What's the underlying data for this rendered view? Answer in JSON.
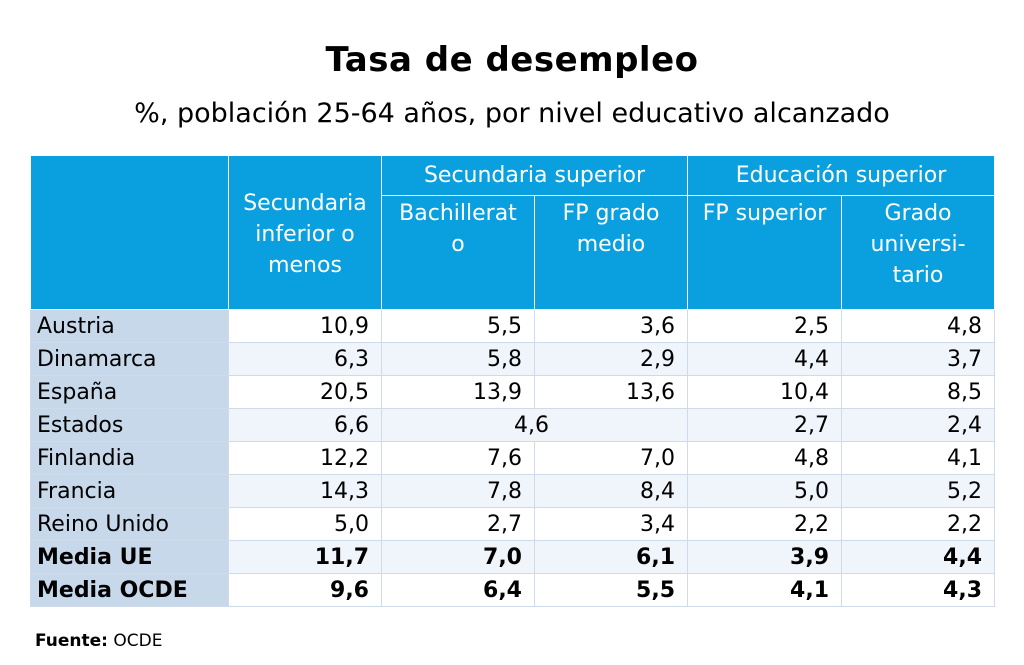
{
  "chart_data": {
    "type": "table",
    "title": "Tasa de desempleo",
    "subtitle": "%, población 25-64 años, por nivel educativo alcanzado",
    "header_groups": [
      {
        "label": [
          "Secundaria",
          "inferior o",
          "menos"
        ]
      },
      {
        "label": "Secundaria superior",
        "sub": [
          [
            "Bachillerat",
            "o"
          ],
          [
            "FP grado",
            "medio"
          ]
        ]
      },
      {
        "label": "Educación superior",
        "sub": [
          [
            "FP superior"
          ],
          [
            "Grado",
            "universi-",
            "tario"
          ]
        ]
      }
    ],
    "columns": [
      "Secundaria inferior o menos",
      "Bachillerato",
      "FP grado medio",
      "FP superior",
      "Grado universitario"
    ],
    "rows": [
      {
        "country": "Austria",
        "values": [
          "10,9",
          "5,5",
          "3,6",
          "2,5",
          "4,8"
        ]
      },
      {
        "country": "Dinamarca",
        "values": [
          "6,3",
          "5,8",
          "2,9",
          "4,4",
          "3,7"
        ]
      },
      {
        "country": "España",
        "values": [
          "20,5",
          "13,9",
          "13,6",
          "10,4",
          "8,5"
        ]
      },
      {
        "country": "Estados",
        "values": [
          "6,6",
          "4,6",
          "2,7",
          "2,4"
        ],
        "merged_secundaria_superior": true
      },
      {
        "country": "Finlandia",
        "values": [
          "12,2",
          "7,6",
          "7,0",
          "4,8",
          "4,1"
        ]
      },
      {
        "country": "Francia",
        "values": [
          "14,3",
          "7,8",
          "8,4",
          "5,0",
          "5,2"
        ]
      },
      {
        "country": "Reino Unido",
        "values": [
          "5,0",
          "2,7",
          "3,4",
          "2,2",
          "2,2"
        ]
      },
      {
        "country": "Media UE",
        "values": [
          "11,7",
          "7,0",
          "6,1",
          "3,9",
          "4,4"
        ],
        "bold": true
      },
      {
        "country": "Media OCDE",
        "values": [
          "9,6",
          "6,4",
          "5,5",
          "4,1",
          "4,3"
        ],
        "bold": true
      }
    ],
    "colors": {
      "header": "#0aa0e0",
      "country_column": "#c7d8ea"
    }
  },
  "source": {
    "label": "Fuente:",
    "value": "OCDE"
  }
}
